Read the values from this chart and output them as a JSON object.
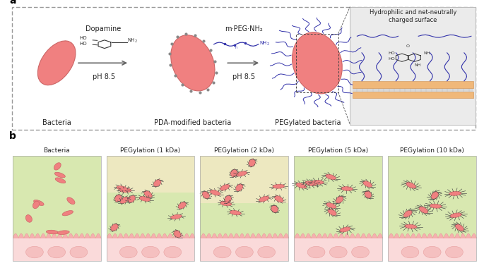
{
  "panel_a_label": "a",
  "panel_b_label": "b",
  "bacteria_color": "#F08080",
  "bacteria_outline": "#CC6666",
  "peg_chain_color": "#3333AA",
  "background_color": "#FFFFFF",
  "mucus_color_green": "#D8E8B0",
  "mucus_color_tan": "#EDE8C0",
  "epithelial_color": "#FADADA",
  "epithelial_border": "#E8A0A0",
  "villi_color": "#F5B0B0",
  "villi_border": "#E89090",
  "cell_color": "#F5C0C0",
  "dashed_box_color": "#999999",
  "gray_box_color": "#EBEBEB",
  "arrow_color": "#666666",
  "text_color": "#222222",
  "panel_b_titles": [
    "Bacteria",
    "PEGylation (1 kDa)",
    "PEGylation (2 kDa)",
    "PEGylation (5 kDa)",
    "PEGylation (10 kDa)"
  ],
  "dopamine_label": "Dopamine",
  "mpeg_label": "m·PEG·NH₂",
  "ph_label1": "pH 8.5",
  "ph_label2": "pH 8.5",
  "bacteria_label": "Bacteria",
  "pda_label": "PDA-modified bacteria",
  "pegylated_label": "PEGylated bacteria",
  "hydrophilic_label": "Hydrophilic and net-neutrally\ncharged surface"
}
